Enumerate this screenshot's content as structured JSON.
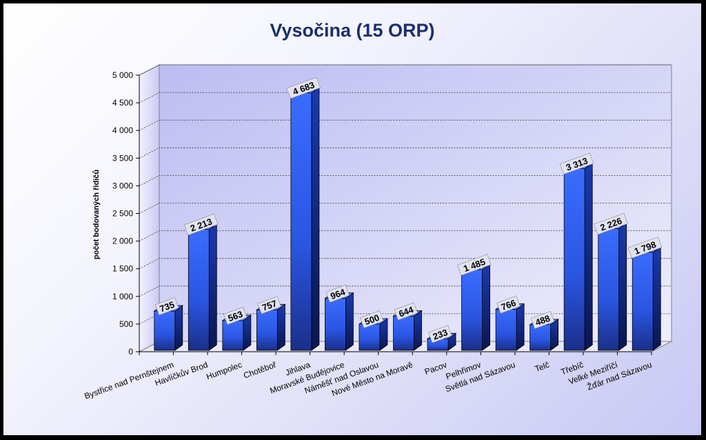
{
  "chart_data": {
    "type": "bar",
    "title": "Vysočina (15 ORP)",
    "ylabel": "počet bodovaných řidičů",
    "xlabel": "",
    "ylim": [
      0,
      5000
    ],
    "yticks": [
      0,
      500,
      1000,
      1500,
      2000,
      2500,
      3000,
      3500,
      4000,
      4500,
      5000
    ],
    "ytick_labels": [
      "0",
      "500",
      "1 000",
      "1 500",
      "2 000",
      "2 500",
      "3 000",
      "3 500",
      "4 000",
      "4 500",
      "5 000"
    ],
    "grid": true,
    "legend": "none",
    "bar_color": "#2f5ef0",
    "categories": [
      "Bystřice nad Pernštejnem",
      "Havlíčkův Brod",
      "Humpolec",
      "Chotěboř",
      "Jihlava",
      "Moravské Budějovice",
      "Náměšť nad Oslavou",
      "Nové Město na Moravě",
      "Pacov",
      "Pelhřimov",
      "Světlá nad Sázavou",
      "Telč",
      "Třebíč",
      "Velké Meziříčí",
      "Žďár nad Sázavou"
    ],
    "values": [
      735,
      2213,
      563,
      757,
      4683,
      964,
      500,
      644,
      233,
      1485,
      766,
      488,
      3313,
      2226,
      1798
    ],
    "value_labels": [
      "735",
      "2 213",
      "563",
      "757",
      "4 683",
      "964",
      "500",
      "644",
      "233",
      "1 485",
      "766",
      "488",
      "3 313",
      "2 226",
      "1 798"
    ]
  }
}
